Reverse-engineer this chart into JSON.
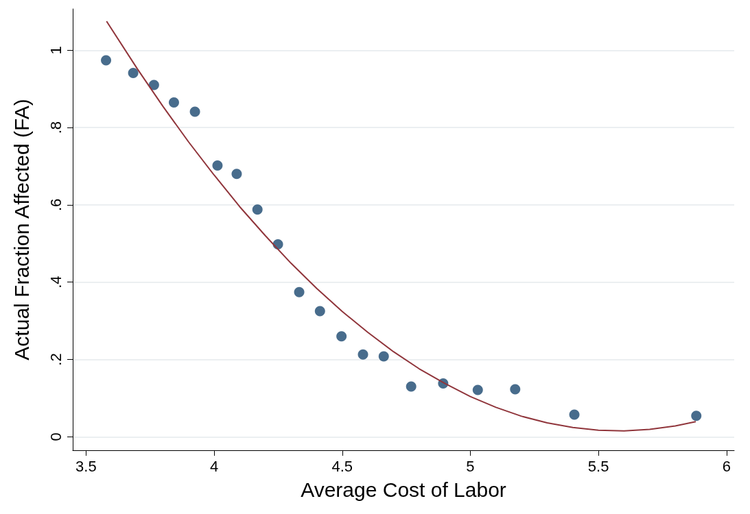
{
  "chart_data": {
    "type": "scatter",
    "xlabel": "Average Cost of Labor",
    "ylabel": "Actual Fraction Affected (FA)",
    "xlim": [
      3.448,
      6.03
    ],
    "ylim": [
      -0.035,
      1.107
    ],
    "xticks": [
      3.5,
      4,
      4.5,
      5,
      5.5,
      6
    ],
    "yticks": [
      {
        "value": 0,
        "label": "0"
      },
      {
        "value": 0.2,
        "label": ".2"
      },
      {
        "value": 0.4,
        "label": ".4"
      },
      {
        "value": 0.6,
        "label": ".6"
      },
      {
        "value": 0.8,
        "label": ".8"
      },
      {
        "value": 1,
        "label": "1"
      }
    ],
    "grid": "y",
    "series": [
      {
        "marker": "circle",
        "color": "#1a476f",
        "x": [
          3.578,
          3.684,
          3.765,
          3.843,
          3.925,
          4.013,
          4.088,
          4.169,
          4.249,
          4.332,
          4.413,
          4.497,
          4.581,
          4.662,
          4.769,
          4.894,
          5.029,
          5.175,
          5.406,
          5.882
        ],
        "values": [
          0.974,
          0.941,
          0.91,
          0.865,
          0.841,
          0.702,
          0.68,
          0.588,
          0.498,
          0.374,
          0.325,
          0.26,
          0.213,
          0.208,
          0.13,
          0.138,
          0.121,
          0.123,
          0.057,
          0.054
        ]
      },
      {
        "type": "line",
        "marker": "none",
        "color": "#90353b",
        "x": [
          3.58,
          3.7,
          3.8,
          3.9,
          4.0,
          4.1,
          4.2,
          4.3,
          4.4,
          4.5,
          4.6,
          4.7,
          4.8,
          4.9,
          5.0,
          5.1,
          5.2,
          5.3,
          5.4,
          5.5,
          5.6,
          5.7,
          5.8,
          5.88
        ],
        "values": [
          1.075,
          0.952,
          0.855,
          0.763,
          0.677,
          0.595,
          0.52,
          0.449,
          0.384,
          0.324,
          0.27,
          0.22,
          0.176,
          0.138,
          0.104,
          0.076,
          0.053,
          0.036,
          0.024,
          0.017,
          0.015,
          0.019,
          0.028,
          0.039
        ]
      }
    ]
  }
}
